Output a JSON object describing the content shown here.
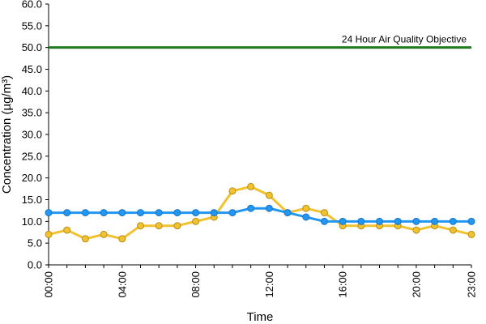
{
  "chart_data": {
    "type": "line",
    "title": "",
    "xlabel": "Time",
    "ylabel": "Concentration (µg/m³)",
    "ylim": [
      0,
      60
    ],
    "y_tick_step": 5,
    "y_tick_labels": [
      "0.0",
      "5.0",
      "10.0",
      "15.0",
      "20.0",
      "25.0",
      "30.0",
      "35.0",
      "40.0",
      "45.0",
      "50.0",
      "55.0",
      "60.0"
    ],
    "x_tick_labels": [
      "00:00",
      "04:00",
      "08:00",
      "12:00",
      "16:00",
      "20:00",
      "23:00"
    ],
    "x_tick_hours": [
      0,
      4,
      8,
      12,
      16,
      20,
      23
    ],
    "grid": false,
    "legend": "none",
    "x_hours": [
      0,
      1,
      2,
      3,
      4,
      5,
      6,
      7,
      8,
      9,
      10,
      11,
      12,
      13,
      14,
      15,
      16,
      17,
      18,
      19,
      20,
      21,
      22,
      23
    ],
    "series": [
      {
        "color": "#2196f3",
        "values": [
          12,
          12,
          12,
          12,
          12,
          12,
          12,
          12,
          12,
          12,
          12,
          13,
          13,
          12,
          11,
          10,
          10,
          10,
          10,
          10,
          10,
          10,
          10,
          10
        ]
      },
      {
        "color": "#f2c12e",
        "values": [
          7,
          8,
          6,
          7,
          6,
          9,
          9,
          9,
          10,
          11,
          17,
          18,
          16,
          12,
          13,
          12,
          9,
          9,
          9,
          9,
          8,
          9,
          8,
          7
        ]
      }
    ],
    "objective": {
      "label": "24 Hour Air Quality Objective",
      "value": 50,
      "color": "#1f7a1f"
    }
  }
}
